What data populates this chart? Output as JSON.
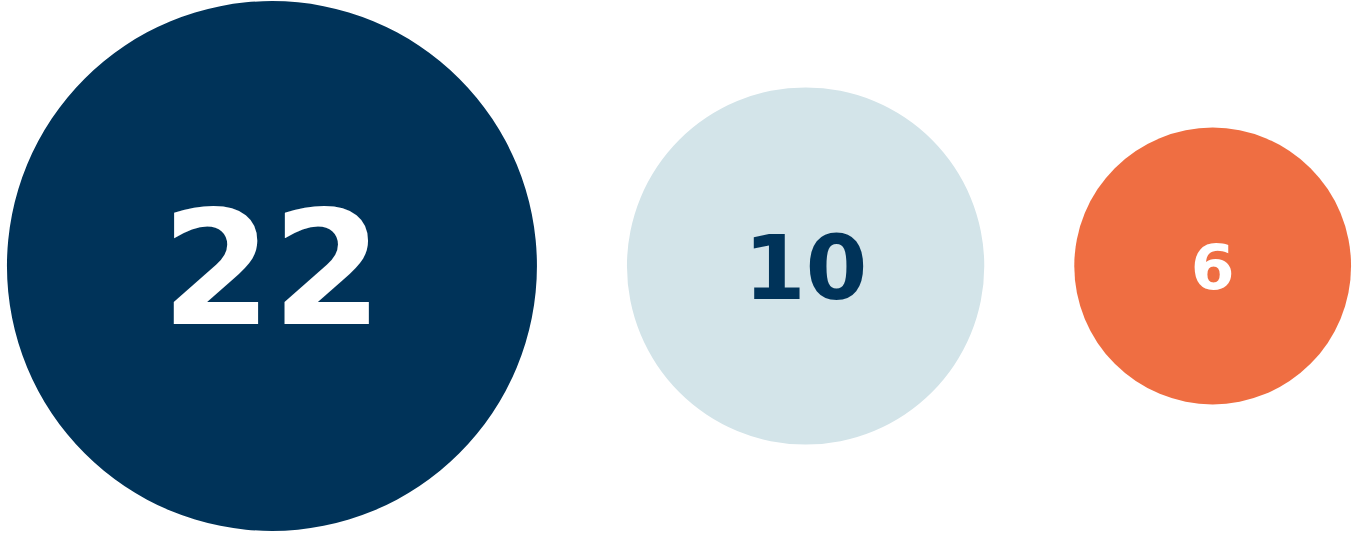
{
  "chart_data": {
    "type": "other",
    "categories": [
      null,
      null,
      null
    ],
    "values": [
      22,
      10,
      6
    ],
    "colors": [
      "#003359",
      "#d3e4e9",
      "#ef6e42"
    ],
    "data_labels": true
  }
}
